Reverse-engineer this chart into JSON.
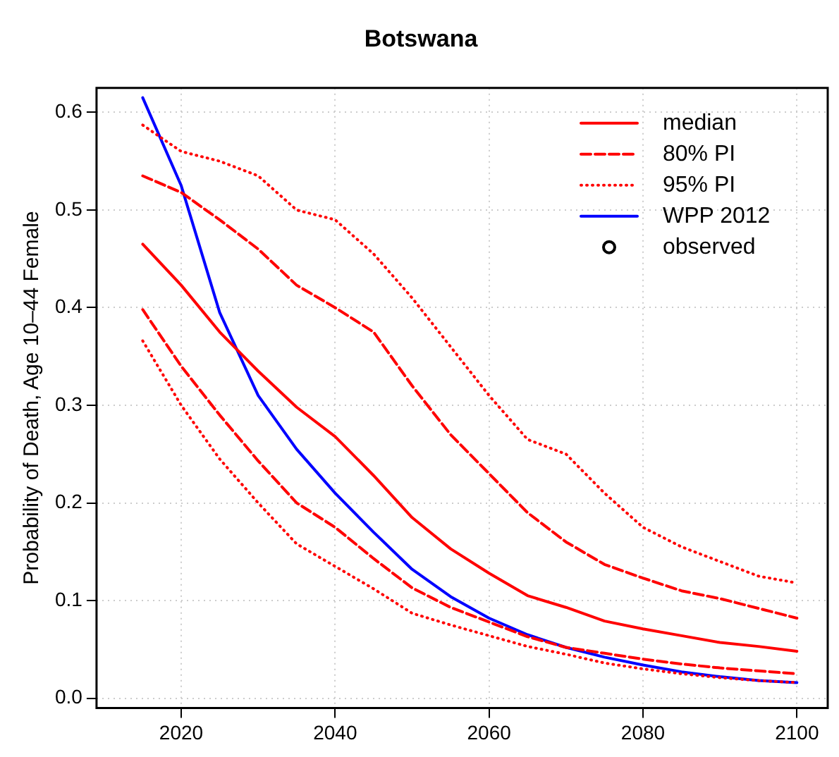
{
  "chart_data": {
    "type": "line",
    "title": "Botswana",
    "ylabel": "Probability of Death, Age 10–44 Female",
    "x": [
      2015,
      2020,
      2025,
      2030,
      2035,
      2040,
      2045,
      2050,
      2055,
      2060,
      2065,
      2070,
      2075,
      2080,
      2085,
      2090,
      2095,
      2100
    ],
    "xlim": [
      2009,
      2104
    ],
    "xticks": [
      2020,
      2040,
      2060,
      2080,
      2100
    ],
    "ylim": [
      -0.01,
      0.625
    ],
    "yticks": [
      {
        "value": 0,
        "label": "0.0"
      },
      0.1,
      0.2,
      0.3,
      0.4,
      0.5,
      0.6
    ],
    "grid": true,
    "legend": "top right",
    "marker": "none",
    "series": [
      {
        "name": "median",
        "color": "#ff0000",
        "line_style": "solid",
        "values": [
          0.465,
          0.423,
          0.375,
          0.335,
          0.298,
          0.268,
          0.228,
          0.185,
          0.153,
          0.128,
          0.105,
          0.093,
          0.079,
          0.071,
          0.064,
          0.057,
          0.053,
          0.048
        ]
      },
      {
        "name": "80% PI",
        "color": "#ff0000",
        "line_style": "dashed",
        "values": [
          0.535,
          0.518,
          0.49,
          0.46,
          0.423,
          0.4,
          0.375,
          0.32,
          0.27,
          0.23,
          0.19,
          0.16,
          0.137,
          0.123,
          0.11,
          0.102,
          0.092,
          0.082
        ]
      },
      {
        "color": "#ff0000",
        "line_style": "dashed",
        "values": [
          0.398,
          0.34,
          0.29,
          0.243,
          0.2,
          0.175,
          0.143,
          0.113,
          0.093,
          0.078,
          0.063,
          0.052,
          0.046,
          0.04,
          0.035,
          0.031,
          0.028,
          0.025
        ]
      },
      {
        "name": "95% PI",
        "color": "#ff0000",
        "line_style": "dotted",
        "values": [
          0.587,
          0.56,
          0.55,
          0.535,
          0.5,
          0.49,
          0.455,
          0.41,
          0.36,
          0.31,
          0.265,
          0.25,
          0.21,
          0.175,
          0.155,
          0.14,
          0.125,
          0.118
        ]
      },
      {
        "color": "#ff0000",
        "line_style": "dotted",
        "values": [
          0.366,
          0.3,
          0.245,
          0.2,
          0.158,
          0.135,
          0.112,
          0.087,
          0.075,
          0.064,
          0.053,
          0.045,
          0.036,
          0.03,
          0.025,
          0.021,
          0.018,
          0.016
        ]
      },
      {
        "name": "WPP 2012",
        "color": "#0000ff",
        "line_style": "solid",
        "values": [
          0.615,
          0.525,
          0.395,
          0.31,
          0.255,
          0.21,
          0.17,
          0.132,
          0.104,
          0.082,
          0.065,
          0.052,
          0.042,
          0.034,
          0.027,
          0.022,
          0.018,
          0.016
        ]
      },
      {
        "name": "observed",
        "type": "scatter",
        "marker": "circle",
        "color": "#000000",
        "values": [
          null,
          null,
          null,
          null,
          null,
          null,
          null,
          null,
          null,
          null,
          null,
          null,
          null,
          null,
          null,
          null,
          null,
          null
        ]
      }
    ]
  }
}
